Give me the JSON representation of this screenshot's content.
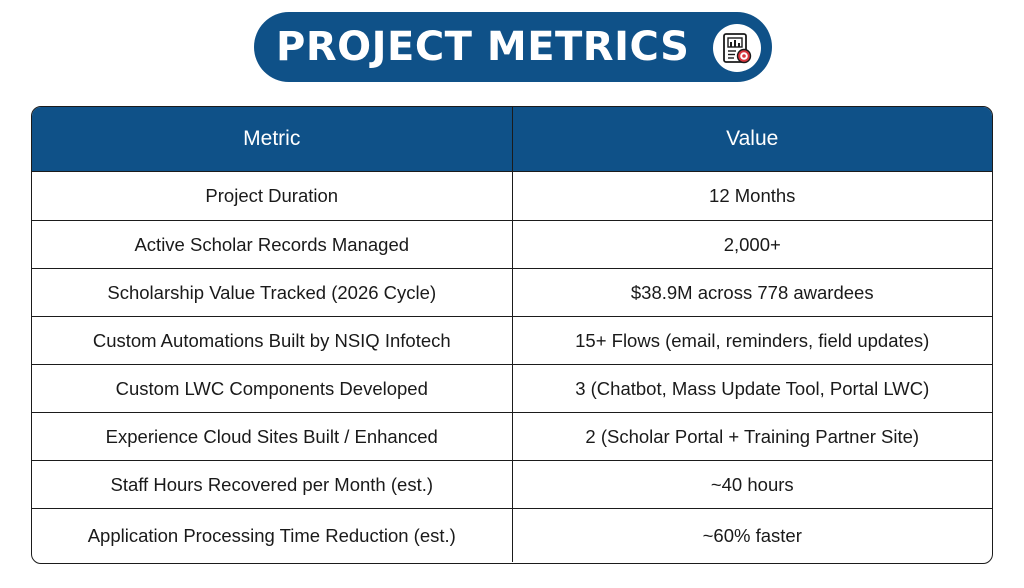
{
  "title": "PROJECT METRICS",
  "title_icon": "report-chart-target-icon",
  "colors": {
    "accent": "#0f5188",
    "target": "#d9363e"
  },
  "table": {
    "headers": [
      "Metric",
      "Value"
    ],
    "rows": [
      {
        "metric": "Project Duration",
        "value": "12 Months"
      },
      {
        "metric": "Active Scholar Records Managed",
        "value": "2,000+"
      },
      {
        "metric": "Scholarship Value Tracked (2026 Cycle)",
        "value": "$38.9M across 778 awardees"
      },
      {
        "metric": "Custom Automations Built by NSIQ Infotech",
        "value": "15+ Flows (email, reminders, field updates)"
      },
      {
        "metric": "Custom LWC Components Developed",
        "value": "3 (Chatbot, Mass Update Tool, Portal LWC)"
      },
      {
        "metric": "Experience Cloud Sites Built / Enhanced",
        "value": "2 (Scholar Portal + Training Partner Site)"
      },
      {
        "metric": "Staff Hours Recovered per Month (est.)",
        "value": "~40 hours"
      },
      {
        "metric": "Application Processing Time Reduction (est.)",
        "value": "~60% faster"
      }
    ]
  }
}
